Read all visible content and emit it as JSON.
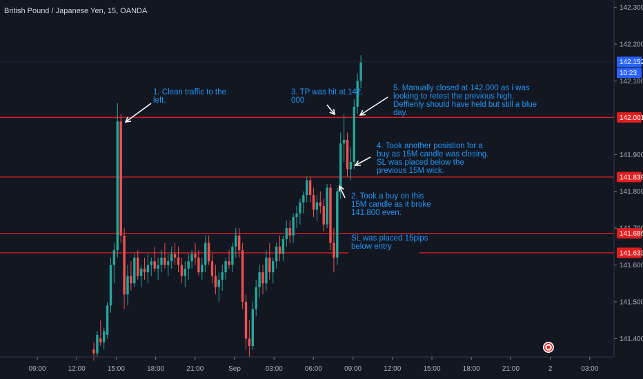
{
  "header": {
    "title": "British Pound / Japanese Yen, 15, OANDA"
  },
  "colors": {
    "background": "#131722",
    "bull": "#26a69a",
    "bear": "#ef5350",
    "level_line": "#e02020",
    "annotation": "#2196f3",
    "current_price_tag": "#2962ff"
  },
  "chart_data": {
    "type": "candlestick",
    "title": "British Pound / Japanese Yen, 15, OANDA",
    "ylim": [
      141.35,
      142.32
    ],
    "y_ticks": [
      "142.300",
      "142.200",
      "142.100",
      "141.900",
      "141.800",
      "141.700",
      "141.600",
      "141.500",
      "141.400"
    ],
    "x_ticks": [
      "09:00",
      "12:00",
      "15:00",
      "18:00",
      "21:00",
      "Sep",
      "03:00",
      "06:00",
      "09:00",
      "12:00",
      "15:00",
      "18:00",
      "21:00",
      "2",
      "03:00"
    ],
    "horizontal_levels": [
      {
        "price": 142.001,
        "label": "142.001"
      },
      {
        "price": 141.839,
        "label": "141.839"
      },
      {
        "price": 141.686,
        "label": "141.686"
      },
      {
        "price": 141.633,
        "label": "141.633"
      }
    ],
    "current_price": {
      "label": "142.152",
      "value": 142.152,
      "timer": "10:23"
    },
    "candles": [
      {
        "o": 141.37,
        "h": 141.39,
        "l": 141.34,
        "c": 141.36
      },
      {
        "o": 141.36,
        "h": 141.42,
        "l": 141.35,
        "c": 141.41
      },
      {
        "o": 141.4,
        "h": 141.45,
        "l": 141.38,
        "c": 141.39
      },
      {
        "o": 141.39,
        "h": 141.43,
        "l": 141.37,
        "c": 141.42
      },
      {
        "o": 141.41,
        "h": 141.5,
        "l": 141.4,
        "c": 141.49
      },
      {
        "o": 141.49,
        "h": 141.62,
        "l": 141.47,
        "c": 141.6
      },
      {
        "o": 141.6,
        "h": 141.66,
        "l": 141.55,
        "c": 141.64
      },
      {
        "o": 141.64,
        "h": 142.04,
        "l": 141.62,
        "c": 141.99
      },
      {
        "o": 141.99,
        "h": 142.01,
        "l": 141.66,
        "c": 141.68
      },
      {
        "o": 141.68,
        "h": 141.7,
        "l": 141.48,
        "c": 141.52
      },
      {
        "o": 141.52,
        "h": 141.6,
        "l": 141.49,
        "c": 141.57
      },
      {
        "o": 141.57,
        "h": 141.61,
        "l": 141.53,
        "c": 141.55
      },
      {
        "o": 141.55,
        "h": 141.63,
        "l": 141.54,
        "c": 141.62
      },
      {
        "o": 141.62,
        "h": 141.64,
        "l": 141.56,
        "c": 141.57
      },
      {
        "o": 141.57,
        "h": 141.6,
        "l": 141.54,
        "c": 141.59
      },
      {
        "o": 141.59,
        "h": 141.62,
        "l": 141.56,
        "c": 141.58
      },
      {
        "o": 141.58,
        "h": 141.63,
        "l": 141.55,
        "c": 141.6
      },
      {
        "o": 141.6,
        "h": 141.62,
        "l": 141.57,
        "c": 141.61
      },
      {
        "o": 141.61,
        "h": 141.65,
        "l": 141.58,
        "c": 141.59
      },
      {
        "o": 141.59,
        "h": 141.62,
        "l": 141.56,
        "c": 141.6
      },
      {
        "o": 141.6,
        "h": 141.64,
        "l": 141.58,
        "c": 141.62
      },
      {
        "o": 141.62,
        "h": 141.66,
        "l": 141.59,
        "c": 141.6
      },
      {
        "o": 141.6,
        "h": 141.63,
        "l": 141.57,
        "c": 141.61
      },
      {
        "o": 141.61,
        "h": 141.65,
        "l": 141.59,
        "c": 141.63
      },
      {
        "o": 141.63,
        "h": 141.66,
        "l": 141.6,
        "c": 141.62
      },
      {
        "o": 141.62,
        "h": 141.65,
        "l": 141.58,
        "c": 141.6
      },
      {
        "o": 141.6,
        "h": 141.62,
        "l": 141.55,
        "c": 141.57
      },
      {
        "o": 141.57,
        "h": 141.61,
        "l": 141.54,
        "c": 141.59
      },
      {
        "o": 141.59,
        "h": 141.63,
        "l": 141.56,
        "c": 141.61
      },
      {
        "o": 141.61,
        "h": 141.64,
        "l": 141.59,
        "c": 141.63
      },
      {
        "o": 141.63,
        "h": 141.66,
        "l": 141.6,
        "c": 141.62
      },
      {
        "o": 141.62,
        "h": 141.64,
        "l": 141.57,
        "c": 141.58
      },
      {
        "o": 141.58,
        "h": 141.62,
        "l": 141.56,
        "c": 141.6
      },
      {
        "o": 141.6,
        "h": 141.68,
        "l": 141.58,
        "c": 141.66
      },
      {
        "o": 141.66,
        "h": 141.68,
        "l": 141.6,
        "c": 141.61
      },
      {
        "o": 141.61,
        "h": 141.63,
        "l": 141.55,
        "c": 141.57
      },
      {
        "o": 141.57,
        "h": 141.6,
        "l": 141.52,
        "c": 141.54
      },
      {
        "o": 141.54,
        "h": 141.58,
        "l": 141.5,
        "c": 141.56
      },
      {
        "o": 141.56,
        "h": 141.6,
        "l": 141.53,
        "c": 141.58
      },
      {
        "o": 141.58,
        "h": 141.62,
        "l": 141.56,
        "c": 141.61
      },
      {
        "o": 141.61,
        "h": 141.64,
        "l": 141.59,
        "c": 141.6
      },
      {
        "o": 141.6,
        "h": 141.66,
        "l": 141.58,
        "c": 141.65
      },
      {
        "o": 141.65,
        "h": 141.7,
        "l": 141.62,
        "c": 141.68
      },
      {
        "o": 141.68,
        "h": 141.7,
        "l": 141.62,
        "c": 141.64
      },
      {
        "o": 141.64,
        "h": 141.66,
        "l": 141.48,
        "c": 141.5
      },
      {
        "o": 141.5,
        "h": 141.52,
        "l": 141.37,
        "c": 141.4
      },
      {
        "o": 141.4,
        "h": 141.45,
        "l": 141.35,
        "c": 141.38
      },
      {
        "o": 141.38,
        "h": 141.5,
        "l": 141.37,
        "c": 141.48
      },
      {
        "o": 141.48,
        "h": 141.56,
        "l": 141.46,
        "c": 141.54
      },
      {
        "o": 141.54,
        "h": 141.6,
        "l": 141.51,
        "c": 141.58
      },
      {
        "o": 141.58,
        "h": 141.6,
        "l": 141.52,
        "c": 141.55
      },
      {
        "o": 141.55,
        "h": 141.64,
        "l": 141.53,
        "c": 141.62
      },
      {
        "o": 141.62,
        "h": 141.66,
        "l": 141.56,
        "c": 141.58
      },
      {
        "o": 141.58,
        "h": 141.62,
        "l": 141.55,
        "c": 141.61
      },
      {
        "o": 141.61,
        "h": 141.66,
        "l": 141.59,
        "c": 141.65
      },
      {
        "o": 141.65,
        "h": 141.68,
        "l": 141.61,
        "c": 141.63
      },
      {
        "o": 141.63,
        "h": 141.68,
        "l": 141.61,
        "c": 141.67
      },
      {
        "o": 141.67,
        "h": 141.72,
        "l": 141.65,
        "c": 141.7
      },
      {
        "o": 141.7,
        "h": 141.72,
        "l": 141.66,
        "c": 141.68
      },
      {
        "o": 141.68,
        "h": 141.74,
        "l": 141.66,
        "c": 141.73
      },
      {
        "o": 141.73,
        "h": 141.76,
        "l": 141.7,
        "c": 141.74
      },
      {
        "o": 141.74,
        "h": 141.78,
        "l": 141.71,
        "c": 141.77
      },
      {
        "o": 141.77,
        "h": 141.8,
        "l": 141.74,
        "c": 141.79
      },
      {
        "o": 141.79,
        "h": 141.84,
        "l": 141.77,
        "c": 141.83
      },
      {
        "o": 141.83,
        "h": 141.84,
        "l": 141.77,
        "c": 141.79
      },
      {
        "o": 141.79,
        "h": 141.81,
        "l": 141.73,
        "c": 141.75
      },
      {
        "o": 141.75,
        "h": 141.79,
        "l": 141.72,
        "c": 141.77
      },
      {
        "o": 141.77,
        "h": 141.8,
        "l": 141.74,
        "c": 141.76
      },
      {
        "o": 141.76,
        "h": 141.78,
        "l": 141.69,
        "c": 141.71
      },
      {
        "o": 141.71,
        "h": 141.82,
        "l": 141.7,
        "c": 141.81
      },
      {
        "o": 141.81,
        "h": 141.82,
        "l": 141.64,
        "c": 141.66
      },
      {
        "o": 141.66,
        "h": 141.7,
        "l": 141.58,
        "c": 141.62
      },
      {
        "o": 141.62,
        "h": 141.81,
        "l": 141.6,
        "c": 141.8
      },
      {
        "o": 141.8,
        "h": 141.96,
        "l": 141.78,
        "c": 141.93
      },
      {
        "o": 141.93,
        "h": 142.01,
        "l": 141.88,
        "c": 141.94
      },
      {
        "o": 141.94,
        "h": 141.96,
        "l": 141.84,
        "c": 141.86
      },
      {
        "o": 141.86,
        "h": 141.92,
        "l": 141.83,
        "c": 141.88
      },
      {
        "o": 141.88,
        "h": 142.05,
        "l": 141.86,
        "c": 142.03
      },
      {
        "o": 142.03,
        "h": 142.12,
        "l": 142.01,
        "c": 142.1
      },
      {
        "o": 142.1,
        "h": 142.17,
        "l": 142.08,
        "c": 142.15
      }
    ],
    "annotations": [
      {
        "lines": [
          "1. Clean traffic to the",
          "left."
        ]
      },
      {
        "lines": [
          "3. TP was hit at 142.",
          "000"
        ]
      },
      {
        "lines": [
          "5. Manually closed at 142.000 as i was",
          "looking to retest the previous high.",
          "Deffienly should have held but still a blue",
          "day."
        ]
      },
      {
        "lines": [
          "4. Took another posistion for a",
          "buy as 15M candle was closing.",
          "SL was placed below the",
          "previous 15M wick."
        ]
      },
      {
        "lines": [
          "2. Took a buy on this",
          "15M candle as it broke",
          "141.800 even."
        ]
      },
      {
        "lines": [
          "SL was placed 15pips",
          "below entry"
        ]
      }
    ]
  }
}
